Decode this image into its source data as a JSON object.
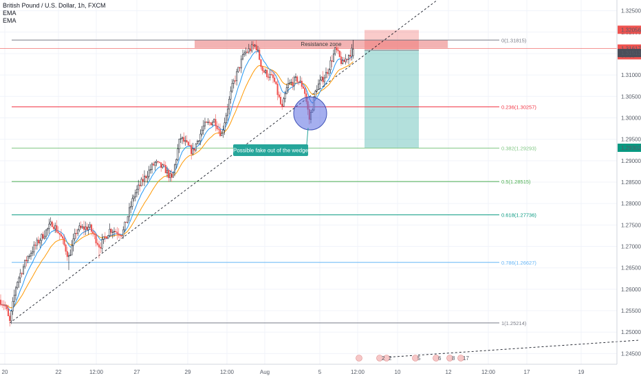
{
  "chart_data": {
    "type": "candlestick",
    "symbol_title": "British Pound / U.S. Dollar, 1h, FXCM",
    "indicators": [
      "EMA",
      "EMA"
    ],
    "x_ticks": [
      "20",
      "22",
      "12:00",
      "27",
      "29",
      "12:00",
      "Aug",
      "5",
      "12:00",
      "10",
      "12",
      "12:00",
      "17",
      "19"
    ],
    "y_ticks": [
      "1.32500",
      "1.32000",
      "1.31500",
      "1.31000",
      "1.30500",
      "1.30000",
      "1.29500",
      "1.29000",
      "1.28500",
      "1.28000",
      "1.27500",
      "1.27000",
      "1.26500",
      "1.26000",
      "1.25500",
      "1.25000",
      "1.24500"
    ],
    "y_tick_values": [
      1.325,
      1.32,
      1.315,
      1.31,
      1.305,
      1.3,
      1.295,
      1.29,
      1.285,
      1.28,
      1.275,
      1.27,
      1.265,
      1.26,
      1.255,
      1.25,
      1.245
    ],
    "ylim": [
      1.2425,
      1.3275
    ],
    "price_labels": [
      {
        "text": "1.32056",
        "value": 1.32056,
        "color": "#ef5350"
      },
      {
        "text": "1.31617",
        "value": 1.31617,
        "color": "#ef5350"
      },
      {
        "text": "36:38",
        "value": 1.3146,
        "color": "#ef5350"
      },
      {
        "text": "1.31513",
        "value": 1.31513,
        "color": "#4a4e5a"
      },
      {
        "text": "1.29302",
        "value": 1.29302,
        "color": "#089981"
      }
    ],
    "fib_levels": [
      {
        "label": "0(1.31815)",
        "value": 1.31815,
        "color": "#787b86"
      },
      {
        "label": "0.236(1.30257)",
        "value": 1.30257,
        "color": "#f23645"
      },
      {
        "label": "0.382(1.29293)",
        "value": 1.29293,
        "color": "#81c784"
      },
      {
        "label": "0.5(1.28515)",
        "value": 1.28515,
        "color": "#4caf50"
      },
      {
        "label": "0.618(1.27736)",
        "value": 1.27736,
        "color": "#089981"
      },
      {
        "label": "0.786(1.26627)",
        "value": 1.26627,
        "color": "#64b5f6"
      },
      {
        "label": "1(1.25214)",
        "value": 1.25214,
        "color": "#787b86"
      }
    ],
    "annotations": {
      "resistance_zone": "Resistance zone",
      "fakeout_label": "Possible fake out of the wedge"
    },
    "event_labels": [
      "2",
      "2",
      "5",
      "6",
      "8",
      "17"
    ],
    "colors": {
      "up": "#26a69a",
      "down": "#ef5350",
      "ema_fast": "#2196f3",
      "ema_slow": "#ff9800"
    },
    "grid": true
  }
}
